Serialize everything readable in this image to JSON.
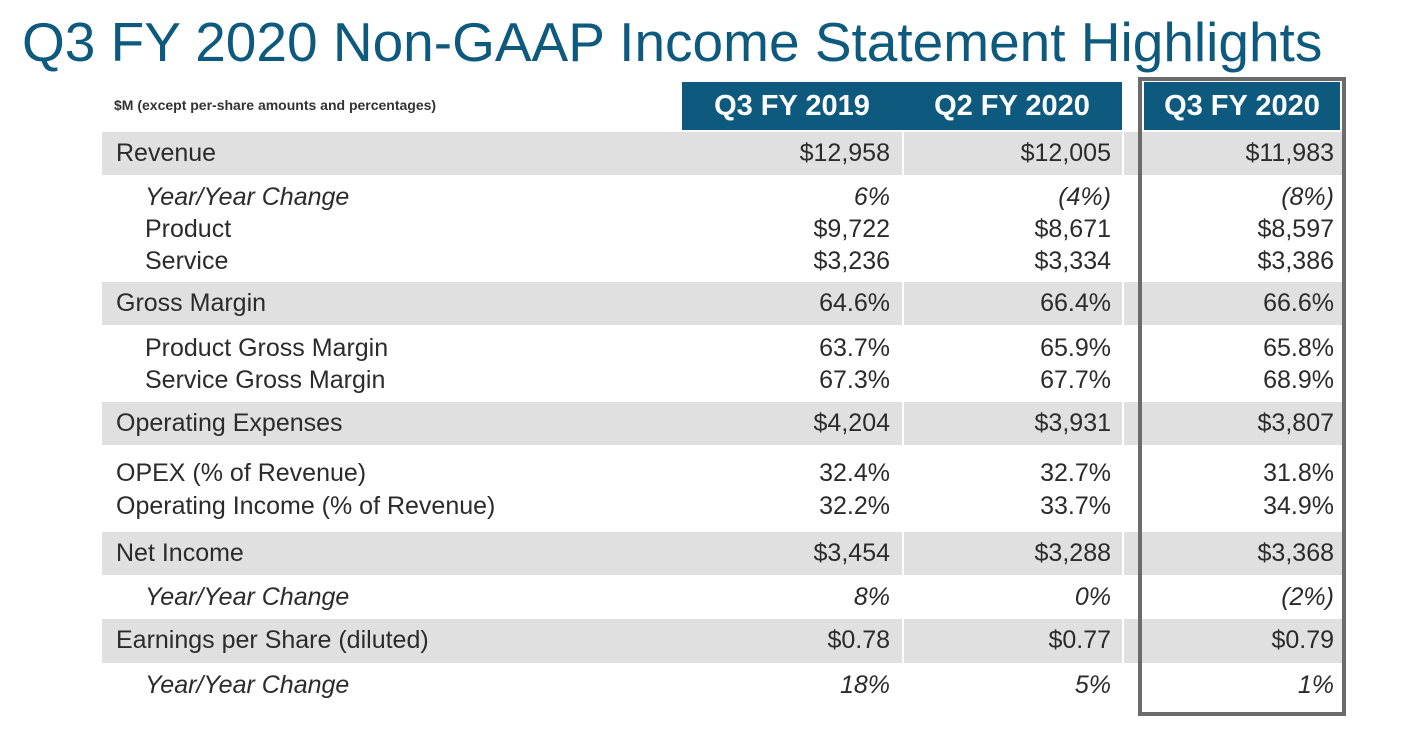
{
  "title": "Q3 FY 2020 Non-GAAP Income Statement Highlights",
  "units_note": "$M (except per-share amounts and percentages)",
  "columns": [
    "Q3 FY 2019",
    "Q2 FY 2020",
    "Q3 FY 2020"
  ],
  "colors": {
    "title": "#0d5a7e",
    "header_bg": "#0d5a7e",
    "header_text": "#ffffff",
    "shaded_row": "#e0e0e0",
    "highlight_border": "#6b6b6b"
  },
  "rows": [
    {
      "label": "Revenue",
      "values": [
        "$12,958",
        "$12,005",
        "$11,983"
      ]
    },
    {
      "label": "Year/Year Change",
      "values": [
        "6%",
        "(4%)",
        "(8%)"
      ]
    },
    {
      "label": "Product",
      "values": [
        "$9,722",
        "$8,671",
        "$8,597"
      ]
    },
    {
      "label": "Service",
      "values": [
        "$3,236",
        "$3,334",
        "$3,386"
      ]
    },
    {
      "label": "Gross Margin",
      "values": [
        "64.6%",
        "66.4%",
        "66.6%"
      ]
    },
    {
      "label": "Product Gross Margin",
      "values": [
        "63.7%",
        "65.9%",
        "65.8%"
      ]
    },
    {
      "label": "Service Gross Margin",
      "values": [
        "67.3%",
        "67.7%",
        "68.9%"
      ]
    },
    {
      "label": "Operating Expenses",
      "values": [
        "$4,204",
        "$3,931",
        "$3,807"
      ]
    },
    {
      "label": "OPEX (% of Revenue)",
      "values": [
        "32.4%",
        "32.7%",
        "31.8%"
      ]
    },
    {
      "label": "Operating Income (% of Revenue)",
      "values": [
        "32.2%",
        "33.7%",
        "34.9%"
      ]
    },
    {
      "label": "Net Income",
      "values": [
        "$3,454",
        "$3,288",
        "$3,368"
      ]
    },
    {
      "label": "Year/Year Change",
      "values": [
        "8%",
        "0%",
        "(2%)"
      ]
    },
    {
      "label": "Earnings per Share (diluted)",
      "values": [
        "$0.78",
        "$0.77",
        "$0.79"
      ]
    },
    {
      "label": "Year/Year Change",
      "values": [
        "18%",
        "5%",
        "1%"
      ]
    }
  ]
}
